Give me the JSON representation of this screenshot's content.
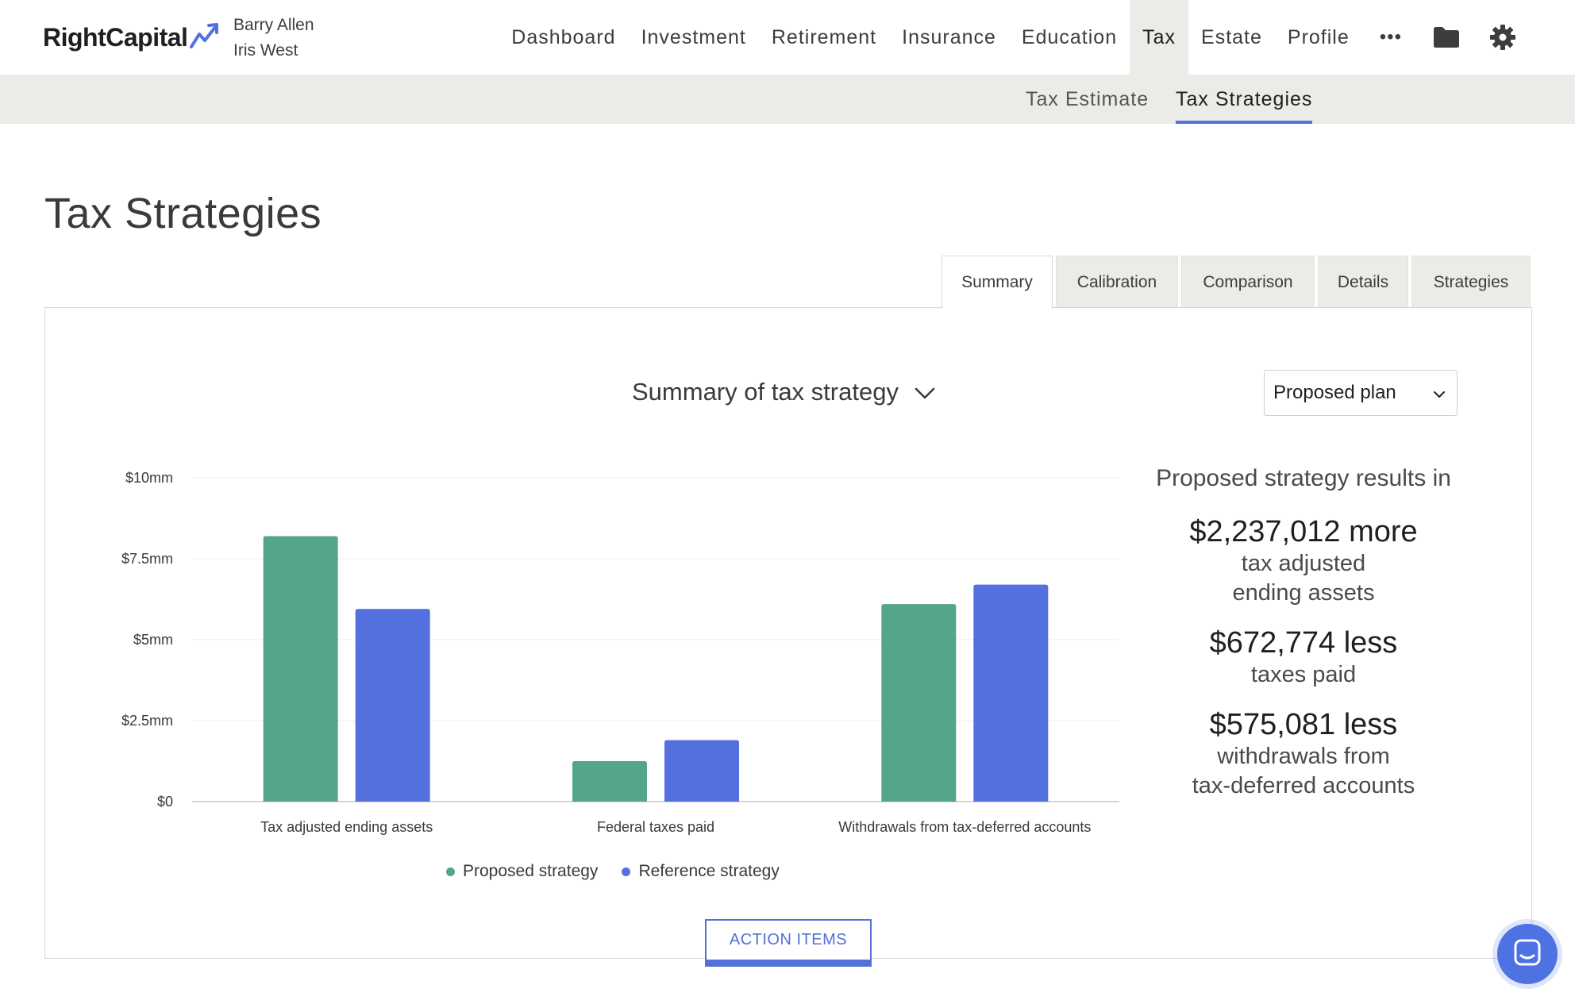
{
  "brand": {
    "logo_text": "RightCapital",
    "accent": "#5470d9",
    "logo_accent": "#4f72e3"
  },
  "clients": {
    "primary": "Barry Allen",
    "secondary": "Iris West"
  },
  "nav": {
    "items": [
      {
        "label": "Dashboard"
      },
      {
        "label": "Investment"
      },
      {
        "label": "Retirement"
      },
      {
        "label": "Insurance"
      },
      {
        "label": "Education"
      },
      {
        "label": "Tax"
      },
      {
        "label": "Estate"
      },
      {
        "label": "Profile"
      }
    ],
    "more_label": "•••",
    "icons": [
      "folder-icon",
      "gear-icon"
    ]
  },
  "subnav": {
    "items": [
      {
        "label": "Tax Estimate"
      },
      {
        "label": "Tax Strategies"
      }
    ]
  },
  "page": {
    "title": "Tax Strategies"
  },
  "tabs": [
    {
      "label": "Summary"
    },
    {
      "label": "Calibration"
    },
    {
      "label": "Comparison"
    },
    {
      "label": "Details"
    },
    {
      "label": "Strategies"
    }
  ],
  "summary": {
    "title": "Summary of tax strategy",
    "plan_select": "Proposed plan"
  },
  "chart_data": {
    "type": "bar",
    "categories": [
      "Tax adjusted ending assets",
      "Federal taxes paid",
      "Withdrawals from tax-deferred accounts"
    ],
    "series": [
      {
        "name": "Proposed strategy",
        "color": "#55a58a",
        "values": [
          8.2,
          1.25,
          6.1
        ]
      },
      {
        "name": "Reference strategy",
        "color": "#5470df",
        "values": [
          5.95,
          1.9,
          6.7
        ]
      }
    ],
    "ylim": [
      0,
      10
    ],
    "yticks": [
      0,
      2.5,
      5,
      7.5,
      10
    ],
    "ytick_labels": [
      "$0",
      "$2.5mm",
      "$5mm",
      "$7.5mm",
      "$10mm"
    ],
    "grid": true,
    "legend": "bottom"
  },
  "results": {
    "heading": "Proposed strategy results in",
    "items": [
      {
        "amount": "$2,237,012 more",
        "desc_1": "tax adjusted",
        "desc_2": "ending assets"
      },
      {
        "amount": "$672,774 less",
        "desc_1": "taxes paid"
      },
      {
        "amount": "$575,081 less",
        "desc_1": "withdrawals from",
        "desc_2": "tax-deferred accounts"
      }
    ]
  },
  "action_button": "ACTION ITEMS"
}
